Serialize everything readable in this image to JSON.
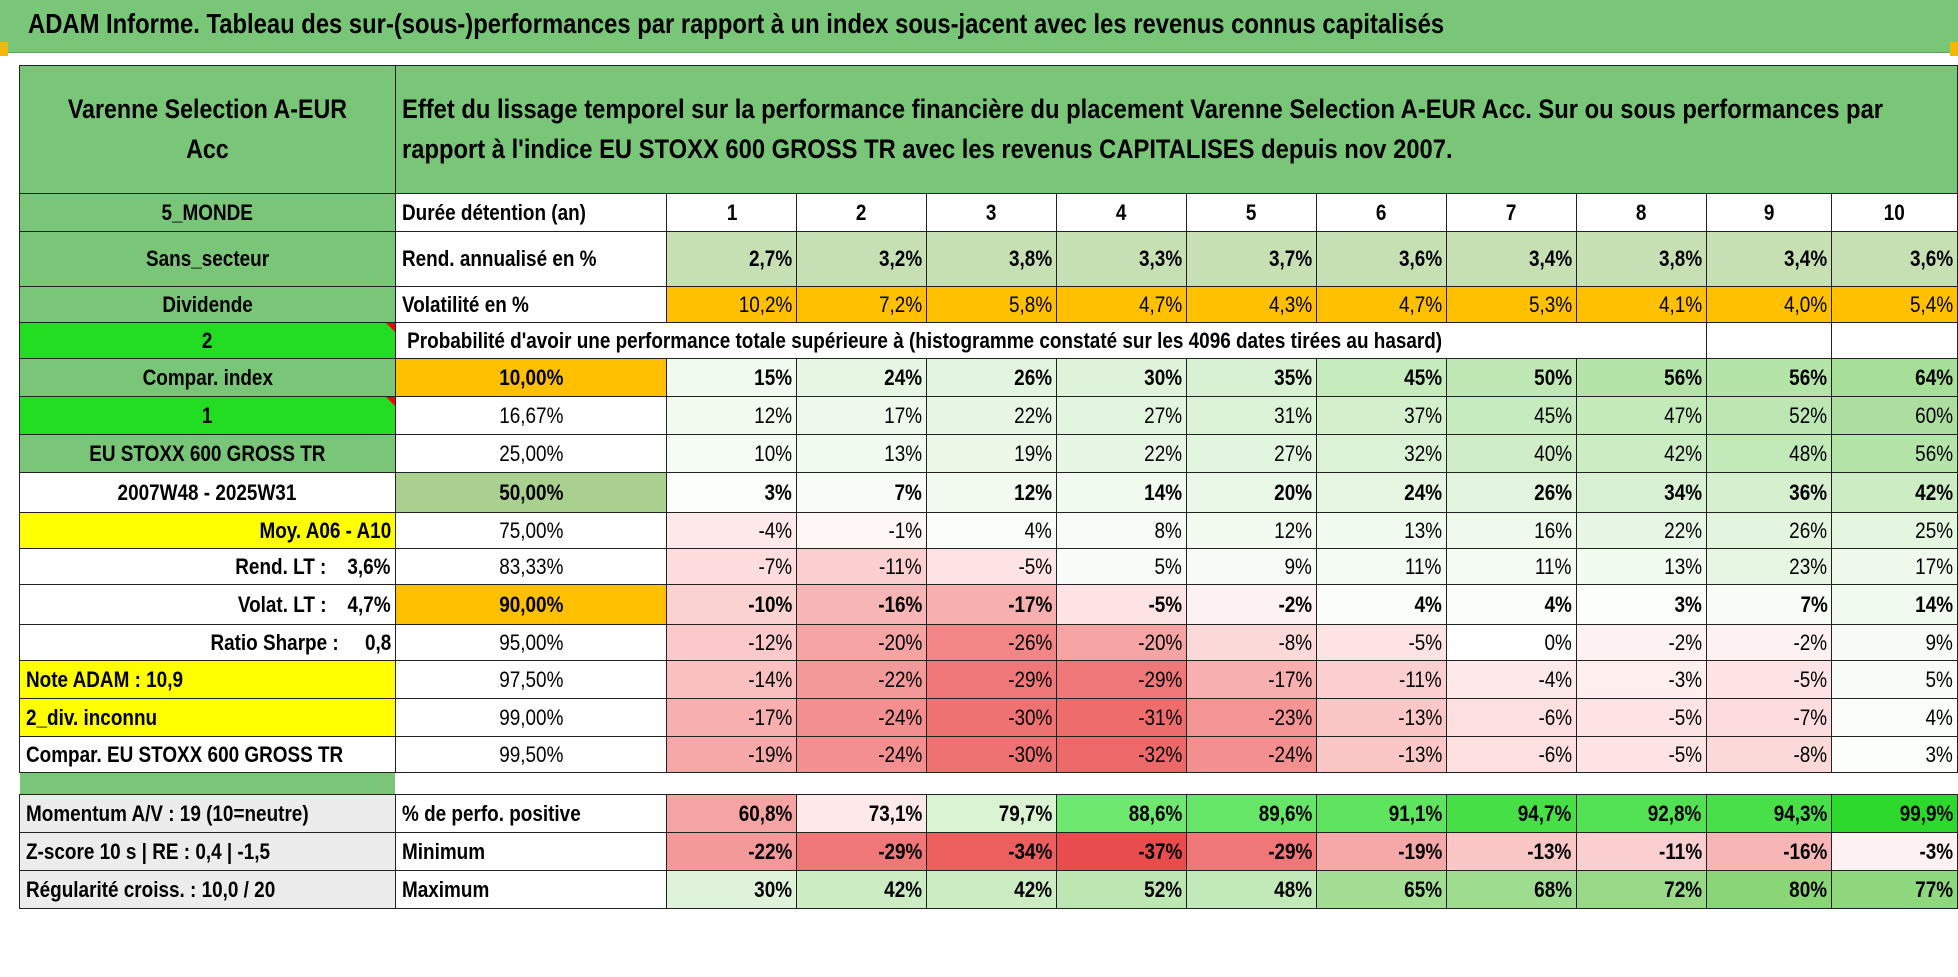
{
  "banner": {
    "title": "ADAM Informe. Tableau des sur-(sous-)performances par rapport à un index sous-jacent avec les revenus connus capitalisés"
  },
  "fund": {
    "name": "Varenne Selection A-EUR Acc",
    "description": "Effet du lissage temporel sur la performance financière du placement Varenne Selection A-EUR Acc. Sur ou sous performances par rapport à l'indice EU STOXX 600 GROSS TR avec les revenus CAPITALISES depuis nov 2007."
  },
  "side_labels": {
    "zone": "5_MONDE",
    "sector": "Sans_secteur",
    "dividend": "Dividende",
    "code2": "2",
    "compar_index": "Compar. index",
    "code1": "1",
    "index_name": "EU STOXX 600 GROSS TR",
    "period": "2007W48 - 2025W31",
    "avg": "Moy. A06 - A10",
    "rend_lt": "Rend. LT :    3,6%",
    "volat_lt": "Volat. LT :    4,7%",
    "sharpe": "Ratio Sharpe :     0,8",
    "note_adam": "Note ADAM : 10,9",
    "div_unknown": "2_div. inconnu",
    "compar_full": "Compar. EU STOXX 600 GROSS TR",
    "momentum": "Momentum A/V : 19 (10=neutre)",
    "zscore": "Z-score 10 s | RE : 0,4 | -1,5",
    "regularite": "Régularité croiss. : 10,0 / 20"
  },
  "row_labels": {
    "duree": "Durée détention (an)",
    "rendement": "Rend. annualisé en %",
    "volatilite": "Volatilité en %",
    "probabilite": "Probabilité d'avoir une performance totale supérieure à (histogramme constaté sur les 4096 dates tirées au hasard)",
    "pct_positive": "% de perfo. positive",
    "minimum": "Minimum",
    "maximum": "Maximum"
  },
  "years": [
    "1",
    "2",
    "3",
    "4",
    "5",
    "6",
    "7",
    "8",
    "9",
    "10"
  ],
  "rendement": [
    "2,7%",
    "3,2%",
    "3,8%",
    "3,3%",
    "3,7%",
    "3,6%",
    "3,4%",
    "3,8%",
    "3,4%",
    "3,6%"
  ],
  "volatilite": [
    "10,2%",
    "7,2%",
    "5,8%",
    "4,7%",
    "4,3%",
    "4,7%",
    "5,3%",
    "4,1%",
    "4,0%",
    "5,4%"
  ],
  "quantiles": [
    {
      "level": "10,00%",
      "values": [
        "15%",
        "24%",
        "26%",
        "30%",
        "35%",
        "45%",
        "50%",
        "56%",
        "56%",
        "64%"
      ],
      "colors": [
        "#f0faee",
        "#e6f6e2",
        "#e2f5de",
        "#def3da",
        "#d8f1d2",
        "#c6ebbd",
        "#bfe8b5",
        "#b4e4a8",
        "#b4e4a8",
        "#a6df98"
      ]
    },
    {
      "level": "16,67%",
      "values": [
        "12%",
        "17%",
        "22%",
        "27%",
        "31%",
        "37%",
        "45%",
        "47%",
        "52%",
        "60%"
      ],
      "colors": [
        "#f3fbf1",
        "#eef9eb",
        "#e8f7e5",
        "#e2f5de",
        "#ddf3d8",
        "#d3efcc",
        "#c6ebbd",
        "#c4eaba",
        "#bce7b2",
        "#acdf9f"
      ]
    },
    {
      "level": "25,00%",
      "values": [
        "10%",
        "13%",
        "19%",
        "22%",
        "27%",
        "32%",
        "40%",
        "42%",
        "48%",
        "56%"
      ],
      "colors": [
        "#f5fcf4",
        "#f2fbf0",
        "#ebf8e8",
        "#e8f7e5",
        "#e2f5de",
        "#dcf2d6",
        "#cfedc7",
        "#ccecc4",
        "#c2e9b8",
        "#b4e4a8"
      ]
    },
    {
      "level": "50,00%",
      "values": [
        "3%",
        "7%",
        "12%",
        "14%",
        "20%",
        "24%",
        "26%",
        "34%",
        "36%",
        "42%"
      ],
      "colors": [
        "#fbfefb",
        "#f8fdf7",
        "#f3fbf1",
        "#f1faef",
        "#eaf8e7",
        "#e6f6e2",
        "#e3f5df",
        "#d9f1d3",
        "#d6f0cf",
        "#ccecc4"
      ]
    },
    {
      "level": "75,00%",
      "values": [
        "-4%",
        "-1%",
        "4%",
        "8%",
        "12%",
        "13%",
        "16%",
        "22%",
        "26%",
        "25%"
      ],
      "colors": [
        "#fde9e9",
        "#fff6f6",
        "#fafdf9",
        "#f7fcf6",
        "#f3fbf1",
        "#f2fbf0",
        "#eff9ec",
        "#e8f7e5",
        "#e3f5df",
        "#e4f5e0"
      ]
    },
    {
      "level": "83,33%",
      "values": [
        "-7%",
        "-11%",
        "-5%",
        "5%",
        "9%",
        "11%",
        "11%",
        "13%",
        "23%",
        "17%"
      ],
      "colors": [
        "#fcdcdc",
        "#fbcfcf",
        "#fde3e3",
        "#f9fdf9",
        "#f6fcf5",
        "#f4fbf2",
        "#f4fbf2",
        "#f2fbf0",
        "#e6f6e2",
        "#eef9eb"
      ]
    },
    {
      "level": "90,00%",
      "values": [
        "-10%",
        "-16%",
        "-17%",
        "-5%",
        "-2%",
        "4%",
        "4%",
        "3%",
        "7%",
        "14%"
      ],
      "colors": [
        "#fbd2d2",
        "#f8b5b5",
        "#f7afaf",
        "#fde3e3",
        "#fef1f1",
        "#fafdf9",
        "#fafdf9",
        "#fbfefb",
        "#f8fdf7",
        "#f1faef"
      ]
    },
    {
      "level": "95,00%",
      "values": [
        "-12%",
        "-20%",
        "-26%",
        "-20%",
        "-8%",
        "-5%",
        "0%",
        "-2%",
        "-2%",
        "9%"
      ],
      "colors": [
        "#fbc9c9",
        "#f5a3a3",
        "#f28585",
        "#f5a3a3",
        "#fcd9d9",
        "#fde3e3",
        "#ffffff",
        "#fef1f1",
        "#fef1f1",
        "#f6fcf5"
      ]
    },
    {
      "level": "97,50%",
      "values": [
        "-14%",
        "-22%",
        "-29%",
        "-29%",
        "-17%",
        "-11%",
        "-4%",
        "-3%",
        "-5%",
        "5%"
      ],
      "colors": [
        "#fac0c0",
        "#f49999",
        "#f07777",
        "#f07777",
        "#f7afaf",
        "#fbcfcf",
        "#fde9e9",
        "#feeeee",
        "#fde3e3",
        "#f9fdf9"
      ]
    },
    {
      "level": "99,00%",
      "values": [
        "-17%",
        "-24%",
        "-30%",
        "-31%",
        "-23%",
        "-13%",
        "-6%",
        "-5%",
        "-7%",
        "4%"
      ],
      "colors": [
        "#f7afaf",
        "#f38f8f",
        "#ef7272",
        "#ee6c6c",
        "#f49494",
        "#fac6c6",
        "#fddfdf",
        "#fde3e3",
        "#fcdcdc",
        "#fafdf9"
      ]
    },
    {
      "level": "99,50%",
      "values": [
        "-19%",
        "-24%",
        "-30%",
        "-32%",
        "-24%",
        "-13%",
        "-6%",
        "-5%",
        "-8%",
        "3%"
      ],
      "colors": [
        "#f6a8a8",
        "#f38f8f",
        "#ef7272",
        "#ed6868",
        "#f38f8f",
        "#fac6c6",
        "#fddfdf",
        "#fde3e3",
        "#fcd9d9",
        "#fbfefb"
      ]
    }
  ],
  "pct_positive": {
    "values": [
      "60,8%",
      "73,1%",
      "79,7%",
      "88,6%",
      "89,6%",
      "91,1%",
      "94,7%",
      "92,8%",
      "94,3%",
      "99,9%"
    ],
    "colors": [
      "#f5a3a3",
      "#fde9e9",
      "#d9f3d3",
      "#6ee86e",
      "#66e666",
      "#5ee45e",
      "#46df46",
      "#52e152",
      "#48df48",
      "#2cd92c"
    ]
  },
  "minimum": {
    "values": [
      "-22%",
      "-29%",
      "-34%",
      "-37%",
      "-29%",
      "-19%",
      "-13%",
      "-11%",
      "-16%",
      "-3%"
    ],
    "colors": [
      "#f49999",
      "#f07777",
      "#ec5f5f",
      "#e94c4c",
      "#f07777",
      "#f6a8a8",
      "#fac6c6",
      "#fbcfcf",
      "#f8b5b5",
      "#fef1f1"
    ]
  },
  "maximum": {
    "values": [
      "30%",
      "42%",
      "42%",
      "52%",
      "48%",
      "65%",
      "68%",
      "72%",
      "80%",
      "77%"
    ],
    "colors": [
      "#def3da",
      "#ccecc4",
      "#ccecc4",
      "#bce7b2",
      "#c2e9b8",
      "#a3de94",
      "#9edc8f",
      "#97d987",
      "#8ad677",
      "#8fd77d"
    ]
  }
}
